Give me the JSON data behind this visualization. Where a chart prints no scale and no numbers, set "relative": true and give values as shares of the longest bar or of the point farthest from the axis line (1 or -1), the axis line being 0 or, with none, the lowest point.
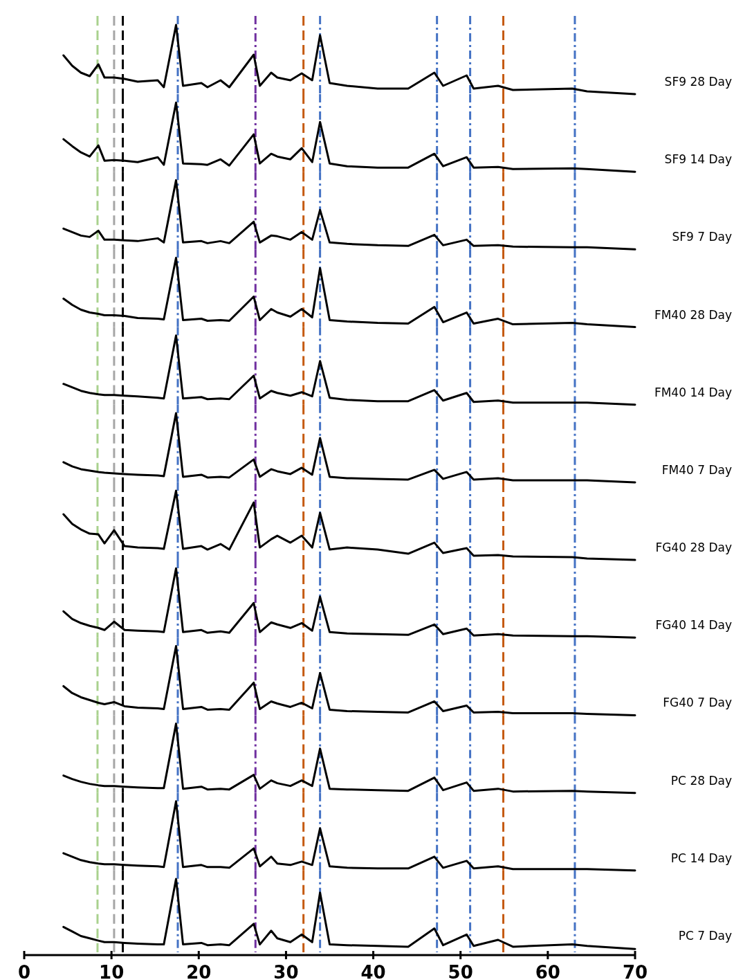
{
  "chart_data": [
    {
      "type": "line",
      "relative": true,
      "xlim": [
        0,
        70
      ],
      "tick_labels": false,
      "x": [
        4.5,
        5.5,
        6.5,
        7.5,
        8.5,
        9.2,
        10.3,
        11.5,
        13,
        15.3,
        16,
        17.4,
        18.2,
        20.3,
        21,
        22.5,
        23.5,
        26.3,
        27,
        28.3,
        29,
        30.5,
        31.8,
        33,
        33.9,
        35,
        37,
        40.5,
        44,
        47,
        48,
        50.7,
        51.5,
        54.3,
        56,
        62.8,
        64.5,
        70
      ],
      "series": [
        {
          "name": "SF9 28 Day",
          "color": "#000000",
          "values": [
            0.56,
            0.41,
            0.31,
            0.26,
            0.43,
            0.24,
            0.24,
            0.22,
            0.18,
            0.2,
            0.1,
            1.0,
            0.12,
            0.16,
            0.1,
            0.2,
            0.1,
            0.57,
            0.12,
            0.31,
            0.24,
            0.2,
            0.3,
            0.2,
            0.85,
            0.16,
            0.12,
            0.08,
            0.08,
            0.31,
            0.12,
            0.27,
            0.08,
            0.12,
            0.06,
            0.08,
            0.04,
            0
          ]
        }
      ],
      "ref_lines": [
        {
          "axis": "x",
          "value": 8.4,
          "color": "#a9d18e",
          "line_style": "dashed"
        },
        {
          "axis": "x",
          "value": 10.3,
          "color": "#a6a6a6",
          "line_style": "dashed"
        },
        {
          "axis": "x",
          "value": 11.3,
          "color": "#000000",
          "line_style": "dashed"
        },
        {
          "axis": "x",
          "value": 17.6,
          "color": "#4472c4",
          "line_style": "dashdot"
        },
        {
          "axis": "x",
          "value": 26.5,
          "color": "#7030a0",
          "line_style": "dashdot"
        },
        {
          "axis": "x",
          "value": 32.0,
          "color": "#c55a11",
          "line_style": "dashed"
        },
        {
          "axis": "x",
          "value": 33.9,
          "color": "#4472c4",
          "line_style": "dashdot"
        },
        {
          "axis": "x",
          "value": 47.3,
          "color": "#4472c4",
          "line_style": "dashdot"
        },
        {
          "axis": "x",
          "value": 51.1,
          "color": "#4472c4",
          "line_style": "dashdot"
        },
        {
          "axis": "x",
          "value": 54.9,
          "color": "#c55a11",
          "line_style": "dashed"
        },
        {
          "axis": "x",
          "value": 63.1,
          "color": "#4472c4",
          "line_style": "dashdot"
        }
      ]
    },
    {
      "type": "line",
      "relative": true,
      "xlim": [
        0,
        70
      ],
      "tick_labels": false,
      "x": [
        4.5,
        5.5,
        6.5,
        7.5,
        8.5,
        9.2,
        10.3,
        11.5,
        13,
        15.3,
        16,
        17.4,
        18.2,
        20.3,
        21,
        22.5,
        23.5,
        26.3,
        27,
        28.3,
        29,
        30.5,
        31.8,
        33,
        33.9,
        35,
        37,
        40.5,
        44,
        47,
        48,
        50.7,
        51.5,
        54.3,
        56,
        62.8,
        64.5,
        70
      ],
      "series": [
        {
          "name": "SF9 14 Day",
          "color": "#000000",
          "values": [
            0.47,
            0.37,
            0.28,
            0.22,
            0.38,
            0.16,
            0.17,
            0.16,
            0.14,
            0.21,
            0.1,
            1.0,
            0.12,
            0.11,
            0.1,
            0.18,
            0.09,
            0.54,
            0.12,
            0.26,
            0.22,
            0.18,
            0.34,
            0.14,
            0.72,
            0.12,
            0.08,
            0.06,
            0.06,
            0.26,
            0.08,
            0.21,
            0.06,
            0.07,
            0.04,
            0.05,
            0.04,
            0
          ]
        }
      ],
      "ref_lines": [
        {
          "axis": "x",
          "value": 8.4,
          "color": "#a9d18e",
          "line_style": "dashed"
        },
        {
          "axis": "x",
          "value": 10.3,
          "color": "#a6a6a6",
          "line_style": "dashed"
        },
        {
          "axis": "x",
          "value": 11.3,
          "color": "#000000",
          "line_style": "dashed"
        },
        {
          "axis": "x",
          "value": 17.6,
          "color": "#4472c4",
          "line_style": "dashdot"
        },
        {
          "axis": "x",
          "value": 26.5,
          "color": "#7030a0",
          "line_style": "dashdot"
        },
        {
          "axis": "x",
          "value": 32.0,
          "color": "#c55a11",
          "line_style": "dashed"
        },
        {
          "axis": "x",
          "value": 33.9,
          "color": "#4472c4",
          "line_style": "dashdot"
        },
        {
          "axis": "x",
          "value": 47.3,
          "color": "#4472c4",
          "line_style": "dashdot"
        },
        {
          "axis": "x",
          "value": 51.1,
          "color": "#4472c4",
          "line_style": "dashdot"
        },
        {
          "axis": "x",
          "value": 54.9,
          "color": "#c55a11",
          "line_style": "dashed"
        },
        {
          "axis": "x",
          "value": 63.1,
          "color": "#4472c4",
          "line_style": "dashdot"
        }
      ]
    },
    {
      "type": "line",
      "relative": true,
      "xlim": [
        0,
        70
      ],
      "tick_labels": false,
      "x": [
        4.5,
        5.5,
        6.5,
        7.5,
        8.5,
        9.2,
        10.3,
        11.5,
        13,
        15.3,
        16,
        17.4,
        18.2,
        20.3,
        21,
        22.5,
        23.5,
        26.3,
        27,
        28.3,
        29,
        30.5,
        31.8,
        33,
        33.9,
        35,
        37,
        40.5,
        44,
        47,
        48,
        50.7,
        51.5,
        54.3,
        56,
        62.8,
        64.5,
        70
      ],
      "series": [
        {
          "name": "SF9 7 Day",
          "color": "#000000",
          "values": [
            0.3,
            0.25,
            0.2,
            0.18,
            0.27,
            0.14,
            0.14,
            0.13,
            0.12,
            0.16,
            0.1,
            1.0,
            0.1,
            0.12,
            0.09,
            0.12,
            0.09,
            0.4,
            0.1,
            0.2,
            0.19,
            0.14,
            0.25,
            0.14,
            0.57,
            0.1,
            0.08,
            0.06,
            0.05,
            0.21,
            0.06,
            0.14,
            0.05,
            0.06,
            0.04,
            0.03,
            0.03,
            0
          ]
        }
      ],
      "ref_lines": [
        {
          "axis": "x",
          "value": 8.4,
          "color": "#a9d18e",
          "line_style": "dashed"
        },
        {
          "axis": "x",
          "value": 10.3,
          "color": "#a6a6a6",
          "line_style": "dashed"
        },
        {
          "axis": "x",
          "value": 11.3,
          "color": "#000000",
          "line_style": "dashed"
        },
        {
          "axis": "x",
          "value": 17.6,
          "color": "#4472c4",
          "line_style": "dashdot"
        },
        {
          "axis": "x",
          "value": 26.5,
          "color": "#7030a0",
          "line_style": "dashdot"
        },
        {
          "axis": "x",
          "value": 32.0,
          "color": "#c55a11",
          "line_style": "dashed"
        },
        {
          "axis": "x",
          "value": 33.9,
          "color": "#4472c4",
          "line_style": "dashdot"
        },
        {
          "axis": "x",
          "value": 47.3,
          "color": "#4472c4",
          "line_style": "dashdot"
        },
        {
          "axis": "x",
          "value": 51.1,
          "color": "#4472c4",
          "line_style": "dashdot"
        },
        {
          "axis": "x",
          "value": 54.9,
          "color": "#c55a11",
          "line_style": "dashed"
        },
        {
          "axis": "x",
          "value": 63.1,
          "color": "#4472c4",
          "line_style": "dashdot"
        }
      ]
    },
    {
      "type": "line",
      "relative": true,
      "xlim": [
        0,
        70
      ],
      "tick_labels": false,
      "x": [
        4.5,
        5.5,
        6.5,
        7.5,
        8.5,
        9.2,
        10.3,
        11.5,
        13,
        15.3,
        16,
        17.4,
        18.2,
        20.3,
        21,
        22.5,
        23.5,
        26.3,
        27,
        28.3,
        29,
        30.5,
        31.8,
        33,
        33.9,
        35,
        37,
        40.5,
        44,
        47,
        48,
        50.7,
        51.5,
        54.3,
        56,
        62.8,
        64.5,
        70
      ],
      "series": [
        {
          "name": "FM40 28 Day",
          "color": "#000000",
          "values": [
            0.41,
            0.32,
            0.25,
            0.21,
            0.19,
            0.17,
            0.17,
            0.16,
            0.13,
            0.12,
            0.11,
            1.0,
            0.1,
            0.12,
            0.09,
            0.1,
            0.09,
            0.44,
            0.1,
            0.26,
            0.21,
            0.15,
            0.26,
            0.14,
            0.85,
            0.1,
            0.08,
            0.06,
            0.05,
            0.29,
            0.07,
            0.21,
            0.05,
            0.12,
            0.04,
            0.06,
            0.04,
            0
          ]
        }
      ],
      "ref_lines": [
        {
          "axis": "x",
          "value": 8.4,
          "color": "#a9d18e",
          "line_style": "dashed"
        },
        {
          "axis": "x",
          "value": 10.3,
          "color": "#a6a6a6",
          "line_style": "dashed"
        },
        {
          "axis": "x",
          "value": 11.3,
          "color": "#000000",
          "line_style": "dashed"
        },
        {
          "axis": "x",
          "value": 17.6,
          "color": "#4472c4",
          "line_style": "dashdot"
        },
        {
          "axis": "x",
          "value": 26.5,
          "color": "#7030a0",
          "line_style": "dashdot"
        },
        {
          "axis": "x",
          "value": 32.0,
          "color": "#c55a11",
          "line_style": "dashed"
        },
        {
          "axis": "x",
          "value": 33.9,
          "color": "#4472c4",
          "line_style": "dashdot"
        },
        {
          "axis": "x",
          "value": 47.3,
          "color": "#4472c4",
          "line_style": "dashdot"
        },
        {
          "axis": "x",
          "value": 51.1,
          "color": "#4472c4",
          "line_style": "dashdot"
        },
        {
          "axis": "x",
          "value": 54.9,
          "color": "#c55a11",
          "line_style": "dashed"
        },
        {
          "axis": "x",
          "value": 63.1,
          "color": "#4472c4",
          "line_style": "dashdot"
        }
      ]
    },
    {
      "type": "line",
      "relative": true,
      "xlim": [
        0,
        70
      ],
      "tick_labels": false,
      "x": [
        4.5,
        5.5,
        6.5,
        7.5,
        8.5,
        9.2,
        10.3,
        11.5,
        13,
        15.3,
        16,
        17.4,
        18.2,
        20.3,
        21,
        22.5,
        23.5,
        26.3,
        27,
        28.3,
        29,
        30.5,
        31.8,
        33,
        33.9,
        35,
        37,
        40.5,
        44,
        47,
        48,
        50.7,
        51.5,
        54.3,
        56,
        62.8,
        64.5,
        70
      ],
      "series": [
        {
          "name": "FM40 14 Day",
          "color": "#000000",
          "values": [
            0.3,
            0.25,
            0.2,
            0.17,
            0.15,
            0.14,
            0.14,
            0.13,
            0.12,
            0.1,
            0.09,
            1.0,
            0.09,
            0.11,
            0.08,
            0.09,
            0.08,
            0.42,
            0.09,
            0.2,
            0.17,
            0.13,
            0.18,
            0.12,
            0.63,
            0.1,
            0.07,
            0.05,
            0.05,
            0.21,
            0.06,
            0.17,
            0.04,
            0.06,
            0.03,
            0.03,
            0.03,
            0
          ]
        }
      ],
      "ref_lines": [
        {
          "axis": "x",
          "value": 8.4,
          "color": "#a9d18e",
          "line_style": "dashed"
        },
        {
          "axis": "x",
          "value": 10.3,
          "color": "#a6a6a6",
          "line_style": "dashed"
        },
        {
          "axis": "x",
          "value": 11.3,
          "color": "#000000",
          "line_style": "dashed"
        },
        {
          "axis": "x",
          "value": 17.6,
          "color": "#4472c4",
          "line_style": "dashdot"
        },
        {
          "axis": "x",
          "value": 26.5,
          "color": "#7030a0",
          "line_style": "dashdot"
        },
        {
          "axis": "x",
          "value": 32.0,
          "color": "#c55a11",
          "line_style": "dashed"
        },
        {
          "axis": "x",
          "value": 33.9,
          "color": "#4472c4",
          "line_style": "dashdot"
        },
        {
          "axis": "x",
          "value": 47.3,
          "color": "#4472c4",
          "line_style": "dashdot"
        },
        {
          "axis": "x",
          "value": 51.1,
          "color": "#4472c4",
          "line_style": "dashdot"
        },
        {
          "axis": "x",
          "value": 54.9,
          "color": "#c55a11",
          "line_style": "dashed"
        },
        {
          "axis": "x",
          "value": 63.1,
          "color": "#4472c4",
          "line_style": "dashdot"
        }
      ]
    },
    {
      "type": "line",
      "relative": true,
      "xlim": [
        0,
        70
      ],
      "tick_labels": false,
      "x": [
        4.5,
        5.5,
        6.5,
        7.5,
        8.5,
        9.2,
        10.3,
        11.5,
        13,
        15.3,
        16,
        17.4,
        18.2,
        20.3,
        21,
        22.5,
        23.5,
        26.3,
        27,
        28.3,
        29,
        30.5,
        31.8,
        33,
        33.9,
        35,
        37,
        40.5,
        44,
        47,
        48,
        50.7,
        51.5,
        54.3,
        56,
        62.8,
        64.5,
        70
      ],
      "series": [
        {
          "name": "FM40 7 Day",
          "color": "#000000",
          "values": [
            0.29,
            0.23,
            0.19,
            0.17,
            0.15,
            0.14,
            0.13,
            0.12,
            0.11,
            0.1,
            0.09,
            1.0,
            0.08,
            0.11,
            0.07,
            0.08,
            0.07,
            0.33,
            0.08,
            0.19,
            0.16,
            0.12,
            0.21,
            0.11,
            0.64,
            0.08,
            0.06,
            0.05,
            0.04,
            0.18,
            0.05,
            0.15,
            0.04,
            0.06,
            0.03,
            0.03,
            0.03,
            0
          ]
        }
      ],
      "ref_lines": [
        {
          "axis": "x",
          "value": 8.4,
          "color": "#a9d18e",
          "line_style": "dashed"
        },
        {
          "axis": "x",
          "value": 10.3,
          "color": "#a6a6a6",
          "line_style": "dashed"
        },
        {
          "axis": "x",
          "value": 11.3,
          "color": "#000000",
          "line_style": "dashed"
        },
        {
          "axis": "x",
          "value": 17.6,
          "color": "#4472c4",
          "line_style": "dashdot"
        },
        {
          "axis": "x",
          "value": 26.5,
          "color": "#7030a0",
          "line_style": "dashdot"
        },
        {
          "axis": "x",
          "value": 32.0,
          "color": "#c55a11",
          "line_style": "dashed"
        },
        {
          "axis": "x",
          "value": 33.9,
          "color": "#4472c4",
          "line_style": "dashdot"
        },
        {
          "axis": "x",
          "value": 47.3,
          "color": "#4472c4",
          "line_style": "dashdot"
        },
        {
          "axis": "x",
          "value": 51.1,
          "color": "#4472c4",
          "line_style": "dashdot"
        },
        {
          "axis": "x",
          "value": 54.9,
          "color": "#c55a11",
          "line_style": "dashed"
        },
        {
          "axis": "x",
          "value": 63.1,
          "color": "#4472c4",
          "line_style": "dashdot"
        }
      ]
    },
    {
      "type": "line",
      "relative": true,
      "xlim": [
        0,
        70
      ],
      "tick_labels": false,
      "x": [
        4.5,
        5.5,
        6.5,
        7.5,
        8.5,
        9.2,
        10.3,
        11.5,
        13,
        15.3,
        16,
        17.4,
        18.2,
        20.3,
        21,
        22.5,
        23.5,
        26.3,
        27,
        28.3,
        29,
        30.5,
        31.8,
        33,
        33.9,
        35,
        37,
        40.5,
        44,
        47,
        48,
        50.7,
        51.5,
        54.3,
        56,
        62.8,
        64.5,
        70
      ],
      "series": [
        {
          "name": "FG40 28 Day",
          "color": "#000000",
          "values": [
            0.66,
            0.52,
            0.44,
            0.38,
            0.37,
            0.24,
            0.43,
            0.2,
            0.18,
            0.17,
            0.16,
            1.0,
            0.16,
            0.2,
            0.15,
            0.23,
            0.15,
            0.83,
            0.18,
            0.3,
            0.35,
            0.25,
            0.35,
            0.18,
            0.68,
            0.15,
            0.18,
            0.15,
            0.09,
            0.25,
            0.1,
            0.17,
            0.06,
            0.07,
            0.05,
            0.04,
            0.02,
            0
          ]
        }
      ],
      "ref_lines": [
        {
          "axis": "x",
          "value": 8.4,
          "color": "#a9d18e",
          "line_style": "dashed"
        },
        {
          "axis": "x",
          "value": 10.3,
          "color": "#a6a6a6",
          "line_style": "dashed"
        },
        {
          "axis": "x",
          "value": 11.3,
          "color": "#000000",
          "line_style": "dashed"
        },
        {
          "axis": "x",
          "value": 17.6,
          "color": "#4472c4",
          "line_style": "dashdot"
        },
        {
          "axis": "x",
          "value": 26.5,
          "color": "#7030a0",
          "line_style": "dashdot"
        },
        {
          "axis": "x",
          "value": 32.0,
          "color": "#c55a11",
          "line_style": "dashed"
        },
        {
          "axis": "x",
          "value": 33.9,
          "color": "#4472c4",
          "line_style": "dashdot"
        },
        {
          "axis": "x",
          "value": 47.3,
          "color": "#4472c4",
          "line_style": "dashdot"
        },
        {
          "axis": "x",
          "value": 51.1,
          "color": "#4472c4",
          "line_style": "dashdot"
        },
        {
          "axis": "x",
          "value": 54.9,
          "color": "#c55a11",
          "line_style": "dashed"
        },
        {
          "axis": "x",
          "value": 63.1,
          "color": "#4472c4",
          "line_style": "dashdot"
        }
      ]
    },
    {
      "type": "line",
      "relative": true,
      "xlim": [
        0,
        70
      ],
      "tick_labels": false,
      "x": [
        4.5,
        5.5,
        6.5,
        7.5,
        8.5,
        9.2,
        10.3,
        11.5,
        13,
        15.3,
        16,
        17.4,
        18.2,
        20.3,
        21,
        22.5,
        23.5,
        26.3,
        27,
        28.3,
        29,
        30.5,
        31.8,
        33,
        33.9,
        35,
        37,
        40.5,
        44,
        47,
        48,
        50.7,
        51.5,
        54.3,
        56,
        62.8,
        64.5,
        70
      ],
      "series": [
        {
          "name": "FG40 14 Day",
          "color": "#000000",
          "values": [
            0.38,
            0.27,
            0.21,
            0.17,
            0.14,
            0.11,
            0.23,
            0.11,
            0.1,
            0.09,
            0.08,
            1.0,
            0.08,
            0.11,
            0.07,
            0.09,
            0.07,
            0.5,
            0.08,
            0.22,
            0.19,
            0.14,
            0.21,
            0.1,
            0.59,
            0.08,
            0.06,
            0.05,
            0.04,
            0.19,
            0.05,
            0.13,
            0.03,
            0.05,
            0.03,
            0.02,
            0.02,
            0
          ]
        }
      ],
      "ref_lines": [
        {
          "axis": "x",
          "value": 8.4,
          "color": "#a9d18e",
          "line_style": "dashed"
        },
        {
          "axis": "x",
          "value": 10.3,
          "color": "#a6a6a6",
          "line_style": "dashed"
        },
        {
          "axis": "x",
          "value": 11.3,
          "color": "#000000",
          "line_style": "dashed"
        },
        {
          "axis": "x",
          "value": 17.6,
          "color": "#4472c4",
          "line_style": "dashdot"
        },
        {
          "axis": "x",
          "value": 26.5,
          "color": "#7030a0",
          "line_style": "dashdot"
        },
        {
          "axis": "x",
          "value": 32.0,
          "color": "#c55a11",
          "line_style": "dashed"
        },
        {
          "axis": "x",
          "value": 33.9,
          "color": "#4472c4",
          "line_style": "dashdot"
        },
        {
          "axis": "x",
          "value": 47.3,
          "color": "#4472c4",
          "line_style": "dashdot"
        },
        {
          "axis": "x",
          "value": 51.1,
          "color": "#4472c4",
          "line_style": "dashdot"
        },
        {
          "axis": "x",
          "value": 54.9,
          "color": "#c55a11",
          "line_style": "dashed"
        },
        {
          "axis": "x",
          "value": 63.1,
          "color": "#4472c4",
          "line_style": "dashdot"
        }
      ]
    },
    {
      "type": "line",
      "relative": true,
      "xlim": [
        0,
        70
      ],
      "tick_labels": false,
      "x": [
        4.5,
        5.5,
        6.5,
        7.5,
        8.5,
        9.2,
        10.3,
        11.5,
        13,
        15.3,
        16,
        17.4,
        18.2,
        20.3,
        21,
        22.5,
        23.5,
        26.3,
        27,
        28.3,
        29,
        30.5,
        31.8,
        33,
        33.9,
        35,
        37,
        40.5,
        44,
        47,
        48,
        50.7,
        51.5,
        54.3,
        56,
        62.8,
        64.5,
        70
      ],
      "series": [
        {
          "name": "FG40 7 Day",
          "color": "#000000",
          "values": [
            0.42,
            0.32,
            0.26,
            0.22,
            0.18,
            0.16,
            0.19,
            0.13,
            0.11,
            0.1,
            0.09,
            1.0,
            0.09,
            0.12,
            0.08,
            0.09,
            0.08,
            0.47,
            0.09,
            0.2,
            0.17,
            0.12,
            0.18,
            0.1,
            0.61,
            0.08,
            0.06,
            0.05,
            0.04,
            0.2,
            0.06,
            0.14,
            0.04,
            0.05,
            0.03,
            0.03,
            0.02,
            0
          ]
        }
      ],
      "ref_lines": [
        {
          "axis": "x",
          "value": 8.4,
          "color": "#a9d18e",
          "line_style": "dashed"
        },
        {
          "axis": "x",
          "value": 10.3,
          "color": "#a6a6a6",
          "line_style": "dashed"
        },
        {
          "axis": "x",
          "value": 11.3,
          "color": "#000000",
          "line_style": "dashed"
        },
        {
          "axis": "x",
          "value": 17.6,
          "color": "#4472c4",
          "line_style": "dashdot"
        },
        {
          "axis": "x",
          "value": 26.5,
          "color": "#7030a0",
          "line_style": "dashdot"
        },
        {
          "axis": "x",
          "value": 32.0,
          "color": "#c55a11",
          "line_style": "dashed"
        },
        {
          "axis": "x",
          "value": 33.9,
          "color": "#4472c4",
          "line_style": "dashdot"
        },
        {
          "axis": "x",
          "value": 47.3,
          "color": "#4472c4",
          "line_style": "dashdot"
        },
        {
          "axis": "x",
          "value": 51.1,
          "color": "#4472c4",
          "line_style": "dashdot"
        },
        {
          "axis": "x",
          "value": 54.9,
          "color": "#c55a11",
          "line_style": "dashed"
        },
        {
          "axis": "x",
          "value": 63.1,
          "color": "#4472c4",
          "line_style": "dashdot"
        }
      ]
    },
    {
      "type": "line",
      "relative": true,
      "xlim": [
        0,
        70
      ],
      "tick_labels": false,
      "x": [
        4.5,
        5.5,
        6.5,
        7.5,
        8.5,
        9.2,
        10.3,
        11.5,
        13,
        15.3,
        16,
        17.4,
        18.2,
        20.3,
        21,
        22.5,
        23.5,
        26.3,
        27,
        28.3,
        29,
        30.5,
        31.8,
        33,
        33.9,
        35,
        37,
        40.5,
        44,
        47,
        48,
        50.7,
        51.5,
        54.3,
        56,
        62.8,
        64.5,
        70
      ],
      "series": [
        {
          "name": "PC 28 Day",
          "color": "#000000",
          "values": [
            0.25,
            0.2,
            0.16,
            0.13,
            0.11,
            0.1,
            0.1,
            0.09,
            0.08,
            0.07,
            0.07,
            1.0,
            0.06,
            0.09,
            0.05,
            0.06,
            0.05,
            0.26,
            0.06,
            0.18,
            0.14,
            0.1,
            0.18,
            0.1,
            0.64,
            0.06,
            0.05,
            0.04,
            0.03,
            0.22,
            0.04,
            0.15,
            0.03,
            0.06,
            0.02,
            0.03,
            0.02,
            0
          ]
        }
      ],
      "ref_lines": [
        {
          "axis": "x",
          "value": 8.4,
          "color": "#a9d18e",
          "line_style": "dashed"
        },
        {
          "axis": "x",
          "value": 10.3,
          "color": "#a6a6a6",
          "line_style": "dashed"
        },
        {
          "axis": "x",
          "value": 11.3,
          "color": "#000000",
          "line_style": "dashed"
        },
        {
          "axis": "x",
          "value": 17.6,
          "color": "#4472c4",
          "line_style": "dashdot"
        },
        {
          "axis": "x",
          "value": 26.5,
          "color": "#7030a0",
          "line_style": "dashdot"
        },
        {
          "axis": "x",
          "value": 32.0,
          "color": "#c55a11",
          "line_style": "dashed"
        },
        {
          "axis": "x",
          "value": 33.9,
          "color": "#4472c4",
          "line_style": "dashdot"
        },
        {
          "axis": "x",
          "value": 47.3,
          "color": "#4472c4",
          "line_style": "dashdot"
        },
        {
          "axis": "x",
          "value": 51.1,
          "color": "#4472c4",
          "line_style": "dashdot"
        },
        {
          "axis": "x",
          "value": 54.9,
          "color": "#c55a11",
          "line_style": "dashed"
        },
        {
          "axis": "x",
          "value": 63.1,
          "color": "#4472c4",
          "line_style": "dashdot"
        }
      ]
    },
    {
      "type": "line",
      "relative": true,
      "xlim": [
        0,
        70
      ],
      "tick_labels": false,
      "x": [
        4.5,
        5.5,
        6.5,
        7.5,
        8.5,
        9.2,
        10.3,
        11.5,
        13,
        15.3,
        16,
        17.4,
        18.2,
        20.3,
        21,
        22.5,
        23.5,
        26.3,
        27,
        28.3,
        29,
        30.5,
        31.8,
        33,
        33.9,
        35,
        37,
        40.5,
        44,
        47,
        48,
        50.7,
        51.5,
        54.3,
        56,
        62.8,
        64.5,
        70
      ],
      "series": [
        {
          "name": "PC 14 Day",
          "color": "#000000",
          "values": [
            0.25,
            0.2,
            0.15,
            0.12,
            0.1,
            0.09,
            0.09,
            0.08,
            0.07,
            0.06,
            0.05,
            1.0,
            0.05,
            0.08,
            0.05,
            0.05,
            0.04,
            0.32,
            0.06,
            0.2,
            0.1,
            0.08,
            0.13,
            0.08,
            0.61,
            0.06,
            0.04,
            0.03,
            0.03,
            0.2,
            0.04,
            0.14,
            0.03,
            0.06,
            0.02,
            0.02,
            0.02,
            0
          ]
        }
      ],
      "ref_lines": [
        {
          "axis": "x",
          "value": 8.4,
          "color": "#a9d18e",
          "line_style": "dashed"
        },
        {
          "axis": "x",
          "value": 10.3,
          "color": "#a6a6a6",
          "line_style": "dashed"
        },
        {
          "axis": "x",
          "value": 11.3,
          "color": "#000000",
          "line_style": "dashed"
        },
        {
          "axis": "x",
          "value": 17.6,
          "color": "#4472c4",
          "line_style": "dashdot"
        },
        {
          "axis": "x",
          "value": 26.5,
          "color": "#7030a0",
          "line_style": "dashdot"
        },
        {
          "axis": "x",
          "value": 32.0,
          "color": "#c55a11",
          "line_style": "dashed"
        },
        {
          "axis": "x",
          "value": 33.9,
          "color": "#4472c4",
          "line_style": "dashdot"
        },
        {
          "axis": "x",
          "value": 47.3,
          "color": "#4472c4",
          "line_style": "dashdot"
        },
        {
          "axis": "x",
          "value": 51.1,
          "color": "#4472c4",
          "line_style": "dashdot"
        },
        {
          "axis": "x",
          "value": 54.9,
          "color": "#c55a11",
          "line_style": "dashed"
        },
        {
          "axis": "x",
          "value": 63.1,
          "color": "#4472c4",
          "line_style": "dashdot"
        }
      ]
    },
    {
      "type": "line",
      "relative": true,
      "xlim": [
        0,
        70
      ],
      "xticks": [
        0,
        10,
        20,
        30,
        40,
        50,
        60,
        70
      ],
      "tick_labels": "x",
      "x": [
        4.5,
        5.5,
        6.5,
        7.5,
        8.5,
        9.2,
        10.3,
        11.5,
        13,
        15.3,
        16,
        17.4,
        18.2,
        20.3,
        21,
        22.5,
        23.5,
        26.3,
        27,
        28.3,
        29,
        30.5,
        31.8,
        33,
        33.9,
        35,
        37,
        40.5,
        44,
        47,
        48,
        50.7,
        51.5,
        54.3,
        56,
        62.8,
        64.5,
        70
      ],
      "series": [
        {
          "name": "PC 7 Day",
          "color": "#000000",
          "values": [
            0.37,
            0.31,
            0.25,
            0.22,
            0.19,
            0.17,
            0.17,
            0.16,
            0.15,
            0.14,
            0.14,
            1.0,
            0.14,
            0.16,
            0.13,
            0.14,
            0.13,
            0.41,
            0.14,
            0.32,
            0.22,
            0.17,
            0.27,
            0.17,
            0.82,
            0.14,
            0.13,
            0.12,
            0.11,
            0.35,
            0.13,
            0.27,
            0.12,
            0.2,
            0.11,
            0.14,
            0.12,
            0.08
          ]
        }
      ],
      "ref_lines": [
        {
          "axis": "x",
          "value": 8.4,
          "color": "#a9d18e",
          "line_style": "dashed"
        },
        {
          "axis": "x",
          "value": 10.3,
          "color": "#a6a6a6",
          "line_style": "dashed"
        },
        {
          "axis": "x",
          "value": 11.3,
          "color": "#000000",
          "line_style": "dashed"
        },
        {
          "axis": "x",
          "value": 17.6,
          "color": "#4472c4",
          "line_style": "dashdot"
        },
        {
          "axis": "x",
          "value": 26.5,
          "color": "#7030a0",
          "line_style": "dashdot"
        },
        {
          "axis": "x",
          "value": 32.0,
          "color": "#c55a11",
          "line_style": "dashed"
        },
        {
          "axis": "x",
          "value": 33.9,
          "color": "#4472c4",
          "line_style": "dashdot"
        },
        {
          "axis": "x",
          "value": 47.3,
          "color": "#4472c4",
          "line_style": "dashdot"
        },
        {
          "axis": "x",
          "value": 51.1,
          "color": "#4472c4",
          "line_style": "dashdot"
        },
        {
          "axis": "x",
          "value": 54.9,
          "color": "#c55a11",
          "line_style": "dashed"
        },
        {
          "axis": "x",
          "value": 63.1,
          "color": "#4472c4",
          "line_style": "dashdot"
        }
      ]
    }
  ]
}
